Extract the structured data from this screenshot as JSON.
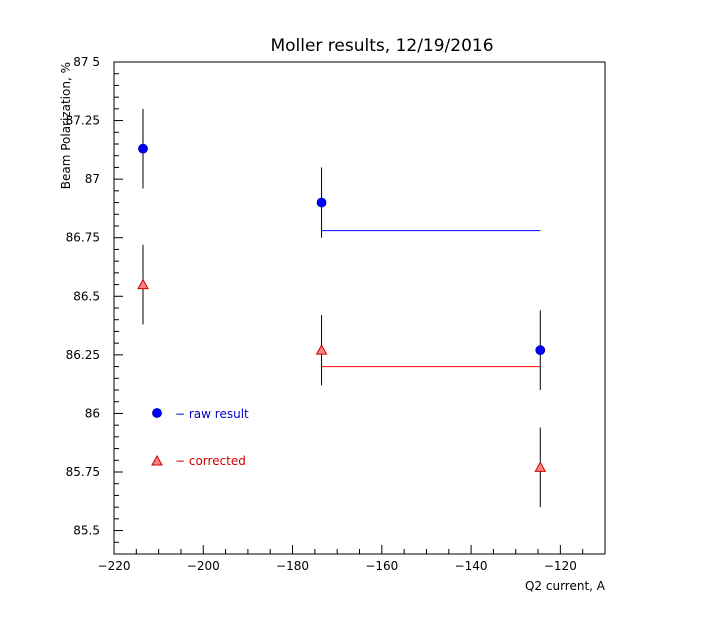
{
  "chart_data": {
    "type": "scatter",
    "title": "Moller results, 12/19/2016",
    "xlabel": "Q2 current, A",
    "ylabel": "Beam Polarization, %",
    "xlim": [
      -220,
      -110
    ],
    "ylim": [
      85.4,
      87.5
    ],
    "xticks": [
      -220,
      -200,
      -180,
      -160,
      -140,
      -120
    ],
    "xtick_labels": [
      "−220",
      "−200",
      "−180",
      "−160",
      "−140",
      "−120"
    ],
    "yticks": [
      85.5,
      85.75,
      86,
      86.25,
      86.5,
      86.75,
      87,
      87.25,
      87.5
    ],
    "ytick_labels": [
      "85.5",
      "85.75",
      "86",
      "86.25",
      "86.5",
      "86.75",
      "87",
      "87.25",
      "87 5"
    ],
    "grid": false,
    "series": [
      {
        "name": "− raw result",
        "color": "#0000ff",
        "marker": "circle",
        "x": [
          -213.5,
          -173.5,
          -124.5
        ],
        "y": [
          87.13,
          86.9,
          86.27
        ],
        "yerr": [
          0.17,
          0.15,
          0.17
        ],
        "mean": 86.78,
        "mean_range": [
          -173.5,
          -124.5
        ]
      },
      {
        "name": "− corrected",
        "color": "#ff0000",
        "marker": "triangle",
        "x": [
          -213.5,
          -173.5,
          -124.5
        ],
        "y": [
          86.55,
          86.27,
          85.77
        ],
        "yerr": [
          0.17,
          0.15,
          0.17
        ],
        "mean": 86.2,
        "mean_range": [
          -173.5,
          -124.5
        ]
      }
    ],
    "legend": "inside-bottom-left"
  }
}
